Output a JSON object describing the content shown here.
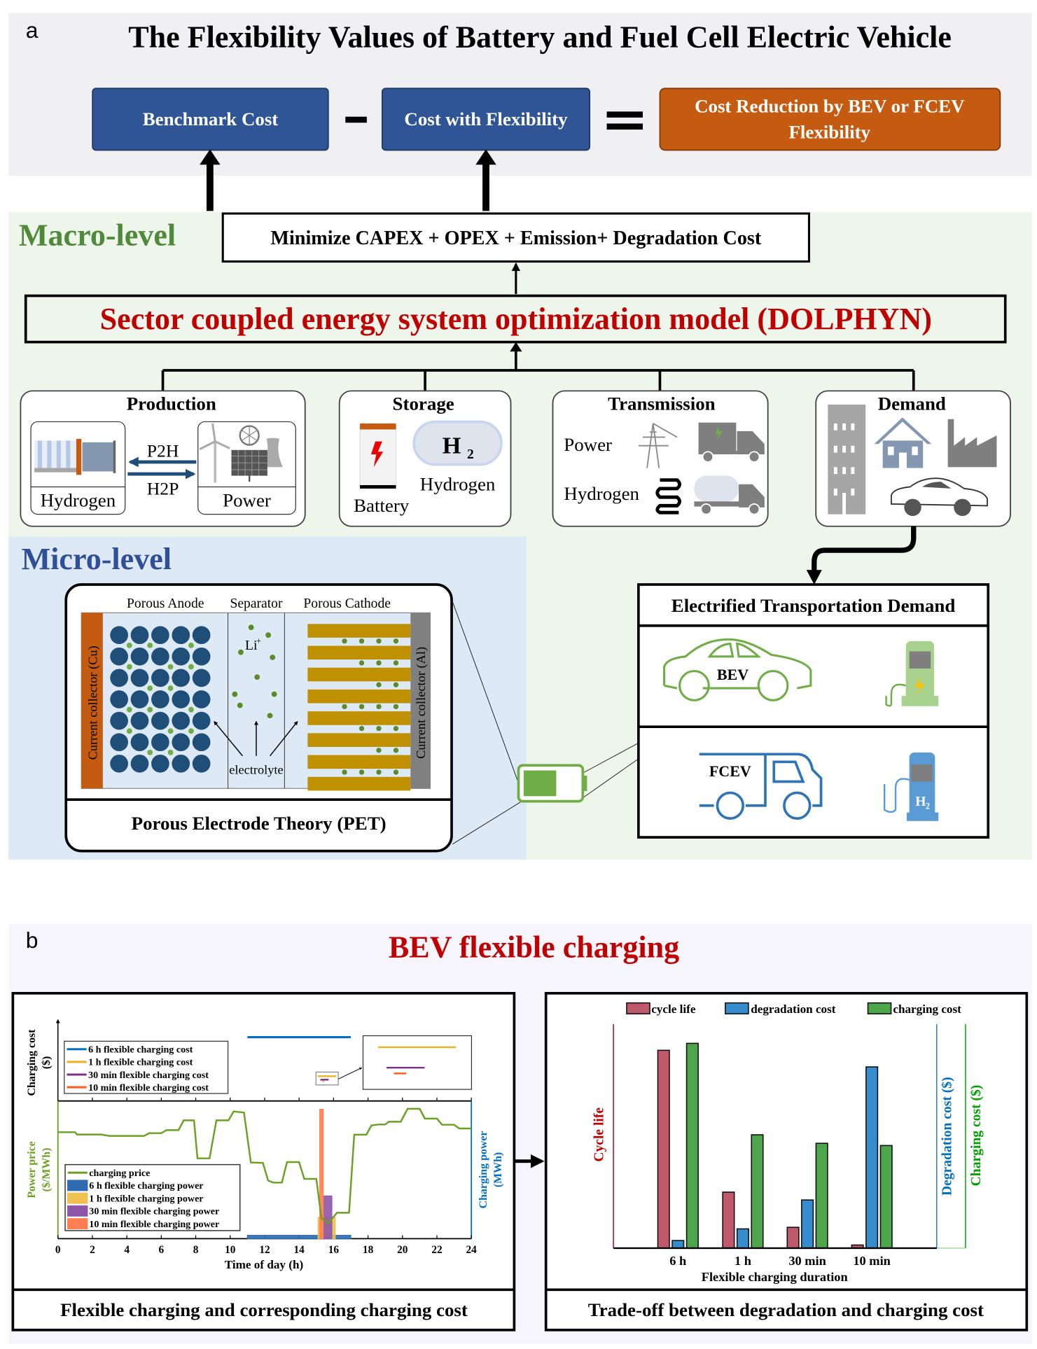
{
  "panel_a": {
    "label": "a",
    "title": "The Flexibility Values of Battery and Fuel Cell Electric Vehicle",
    "equation": {
      "benchmark": "Benchmark Cost",
      "minus": "−",
      "with_flex": "Cost with Flexibility",
      "equals": "=",
      "result_line1": "Cost Reduction by BEV or FCEV",
      "result_line2": "Flexibility"
    },
    "macro_label": "Macro-level",
    "objective": "Minimize CAPEX + OPEX + Emission+ Degradation Cost",
    "model": "Sector coupled energy system optimization model (DOLPHYN)",
    "production": {
      "title": "Production",
      "hydrogen": "Hydrogen",
      "power": "Power",
      "p2h": "P2H",
      "h2p": "H2P"
    },
    "storage": {
      "title": "Storage",
      "h2": "H",
      "h2_sub": "2",
      "hydrogen": "Hydrogen",
      "battery": "Battery"
    },
    "transmission": {
      "title": "Transmission",
      "power": "Power",
      "hydrogen": "Hydrogen"
    },
    "demand": {
      "title": "Demand"
    },
    "micro_label": "Micro-level",
    "pet": {
      "anode": "Porous Anode",
      "separator": "Separator",
      "cathode": "Porous Cathode",
      "cu": "Current collector (Cu)",
      "al": "Current collector (Al)",
      "li": "Li",
      "li_sup": "+",
      "electrolyte": "electrolyte",
      "title": "Porous Electrode Theory (PET)"
    },
    "etd": {
      "title": "Electrified Transportation Demand",
      "bev": "BEV",
      "fcev": "FCEV",
      "h2": "H",
      "h2_sub": "2"
    },
    "colors": {
      "blue_box": "#2f5597",
      "orange_box": "#c55a11",
      "macro_green": "#4f8a3b",
      "micro_blue": "#2f4f96",
      "model_red": "#c00000",
      "bev_green": "#70ad47",
      "fcev_blue": "#2e75b6"
    }
  },
  "panel_b": {
    "label": "b",
    "title": "BEV flexible charging",
    "left_caption": "Flexible charging and corresponding charging cost",
    "right_caption": "Trade-off between degradation and charging cost"
  },
  "chart_data": [
    {
      "type": "line+bar",
      "xlabel": "Time of day (h)",
      "xlim": [
        0,
        24
      ],
      "xticks": [
        "0",
        "2",
        "4",
        "6",
        "8",
        "10",
        "12",
        "14",
        "16",
        "18",
        "20",
        "22",
        "24"
      ],
      "upper_ylabel": "Charging cost",
      "upper_yunit": "($)",
      "ylabel_left": "Power price",
      "ylabel_left_unit": "($/MWh)",
      "ylabel_right": "Charging power",
      "ylabel_right_unit": "(MWh)",
      "value_scale": "relative, 0-100 of plot height (axes have no tick labels)",
      "cost_legend": [
        "6 h flexible charging cost",
        "1 h flexible charging cost",
        "30 min flexible charging cost",
        "10 min flexible charging cost"
      ],
      "cost_lines": [
        {
          "name": "6 h flexible charging cost",
          "start": 11,
          "end": 17,
          "value": 83,
          "color": "#0070c0"
        },
        {
          "name": "1 h flexible charging cost",
          "start": 15.1,
          "end": 16.1,
          "value": 34,
          "color": "#edb120"
        },
        {
          "name": "30 min flexible charging cost",
          "start": 15.35,
          "end": 15.85,
          "value": 28,
          "color": "#7e2f8e"
        },
        {
          "name": "10 min flexible charging cost",
          "start": 15.2,
          "end": 15.4,
          "value": 26,
          "color": "#ff5f1f"
        }
      ],
      "power_legend": [
        "charging price",
        "6 h flexible charging power",
        "1 h flexible charging power",
        "30 min flexible charging power",
        "10 min flexible charging power"
      ],
      "price_color": "#6aa121",
      "price": [
        [
          0,
          77.3
        ],
        [
          1,
          77.3
        ],
        [
          1.1,
          75.6
        ],
        [
          2.5,
          75.6
        ],
        [
          3,
          74.6
        ],
        [
          5,
          74.6
        ],
        [
          5.3,
          76.6
        ],
        [
          6,
          76.6
        ],
        [
          6.3,
          78.8
        ],
        [
          7,
          78.8
        ],
        [
          7.3,
          85.9
        ],
        [
          7.9,
          85.9
        ],
        [
          8.1,
          58.3
        ],
        [
          8.8,
          58.3
        ],
        [
          9.2,
          85.9
        ],
        [
          9.9,
          85.9
        ],
        [
          10.2,
          92.4
        ],
        [
          10.8,
          91.6
        ],
        [
          11.2,
          55.3
        ],
        [
          11.9,
          55.0
        ],
        [
          12.2,
          42.2
        ],
        [
          12.5,
          40.7
        ],
        [
          13.0,
          40.7
        ],
        [
          13.3,
          55.6
        ],
        [
          14.0,
          55.6
        ],
        [
          14.3,
          43.4
        ],
        [
          15.0,
          43.4
        ],
        [
          15.3,
          14.6
        ],
        [
          15.7,
          11.3
        ],
        [
          16.2,
          18.8
        ],
        [
          16.9,
          18.8
        ],
        [
          17.2,
          75.5
        ],
        [
          17.9,
          75.5
        ],
        [
          18.2,
          82.2
        ],
        [
          18.6,
          82.9
        ],
        [
          19.0,
          82.9
        ],
        [
          19.2,
          84.9
        ],
        [
          19.9,
          84.9
        ],
        [
          20.3,
          94.3
        ],
        [
          21.0,
          94.3
        ],
        [
          21.3,
          87.2
        ],
        [
          22.0,
          87.2
        ],
        [
          22.3,
          82.7
        ],
        [
          23.0,
          82.7
        ],
        [
          23.3,
          80.0
        ],
        [
          24,
          80.0
        ]
      ],
      "power_bars": [
        {
          "name": "6 h flexible charging power",
          "start": 11,
          "end": 17,
          "value": 2.4,
          "color": "#2e6bb0"
        },
        {
          "name": "1 h flexible charging power",
          "start": 15.1,
          "end": 16.1,
          "value": 15.5,
          "color": "#f0c050"
        },
        {
          "name": "30 min flexible charging power",
          "start": 15.4,
          "end": 15.9,
          "value": 31,
          "color": "#8e55a8"
        },
        {
          "name": "10 min flexible charging power",
          "start": 15.2,
          "end": 15.4,
          "value": 94,
          "color": "#ff7f50"
        }
      ]
    },
    {
      "type": "bar",
      "categories": [
        "6 h",
        "1 h",
        "30 min",
        "10 min"
      ],
      "xlabel": "Flexible charging duration",
      "ylabel_left": "Cycle life",
      "ylabel_right_1": "Degradation cost ($)",
      "ylabel_right_2": "Charging cost ($)",
      "value_scale": "relative, 0-100 of axis height (axes have no tick labels)",
      "series": [
        {
          "name": "cycle life",
          "values": [
            88.3,
            25.0,
            9.3,
            1.4
          ],
          "color": "#c0596b"
        },
        {
          "name": "degradation cost",
          "values": [
            3.4,
            8.6,
            21.5,
            80.9
          ],
          "color": "#368ccc"
        },
        {
          "name": "charging cost",
          "values": [
            91.4,
            50.6,
            46.8,
            45.8
          ],
          "color": "#4ea64a"
        }
      ],
      "legend": "top"
    }
  ]
}
